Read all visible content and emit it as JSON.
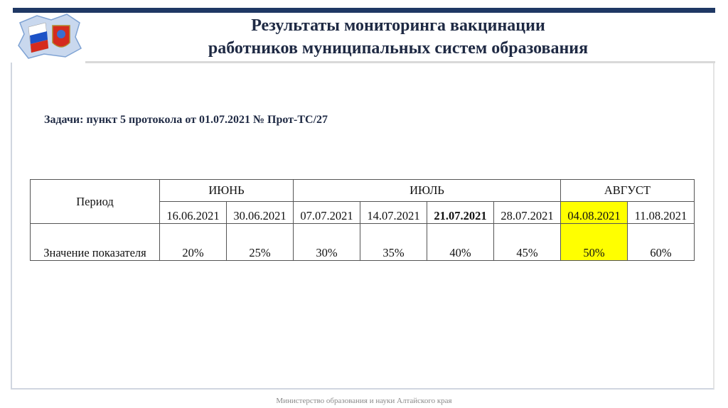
{
  "header": {
    "title_lines": [
      "Результаты мониторинга вакцинации",
      "работников муниципальных систем образования"
    ]
  },
  "task": "Задачи: пункт 5 протокола от 01.07.2021 № Прот-ТС/27",
  "table": {
    "period_label": "Период",
    "value_label": "Значение показателя",
    "months": [
      {
        "name": "ИЮНЬ",
        "dates": [
          "16.06.2021",
          "30.06.2021"
        ],
        "values": [
          "20%",
          "25%"
        ]
      },
      {
        "name": "ИЮЛЬ",
        "dates": [
          "07.07.2021",
          "14.07.2021",
          "21.07.2021",
          "28.07.2021"
        ],
        "values": [
          "30%",
          "35%",
          "40%",
          "45%"
        ]
      },
      {
        "name": "АВГУСТ",
        "dates": [
          "04.08.2021",
          "11.08.2021"
        ],
        "values": [
          "50%",
          "60%"
        ]
      }
    ]
  },
  "footer": "Министерство образования и науки Алтайского края"
}
